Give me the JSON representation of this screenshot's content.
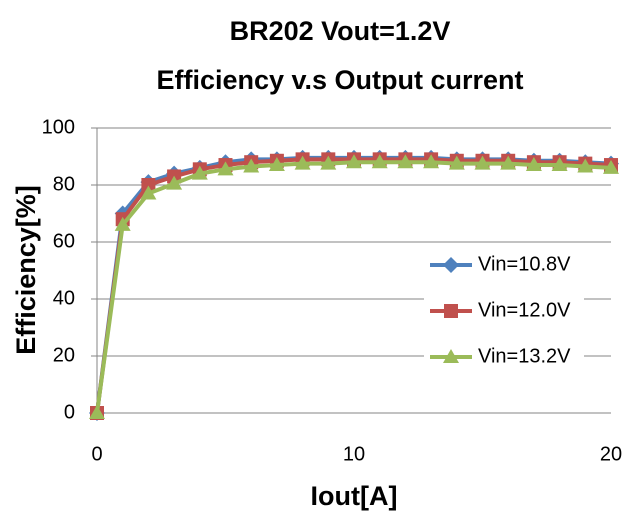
{
  "chart_data": {
    "type": "line",
    "title": "BR202 Vout=1.2V",
    "subtitle": "Efficiency v.s Output  current",
    "xlabel": "Iout[A]",
    "ylabel": "Efficiency[%]",
    "x": [
      0,
      1,
      2,
      3,
      4,
      5,
      6,
      7,
      8,
      9,
      10,
      11,
      12,
      13,
      14,
      15,
      16,
      17,
      18,
      19,
      20
    ],
    "series": [
      {
        "name": "Vin=10.8V",
        "color": "#4f81bd",
        "marker": "diamond",
        "values": [
          0,
          70,
          81,
          84,
          86,
          88,
          89,
          89,
          89.5,
          89.5,
          89.5,
          89.5,
          89.5,
          89.5,
          89,
          89,
          89,
          88.5,
          88.5,
          88,
          87.5
        ]
      },
      {
        "name": "Vin=12.0V",
        "color": "#c0504d",
        "marker": "square",
        "values": [
          0,
          68,
          80,
          83,
          85.5,
          87,
          88,
          88.5,
          89,
          89,
          89,
          89,
          89,
          89,
          88.5,
          88.5,
          88.5,
          88,
          88,
          87.5,
          87
        ]
      },
      {
        "name": "Vin=13.2V",
        "color": "#9bbb59",
        "marker": "triangle",
        "values": [
          0,
          66,
          77,
          80.5,
          84,
          85.5,
          86.5,
          87,
          87.5,
          87.5,
          88,
          88,
          88,
          88,
          87.5,
          87.5,
          87.5,
          87,
          87,
          86.5,
          86
        ]
      }
    ],
    "xlim": [
      0,
      20
    ],
    "xticks": [
      0,
      10,
      20
    ],
    "ylim": [
      0,
      100
    ],
    "yticks": [
      0,
      20,
      40,
      60,
      80,
      100
    ],
    "grid": true,
    "legend": "right"
  }
}
